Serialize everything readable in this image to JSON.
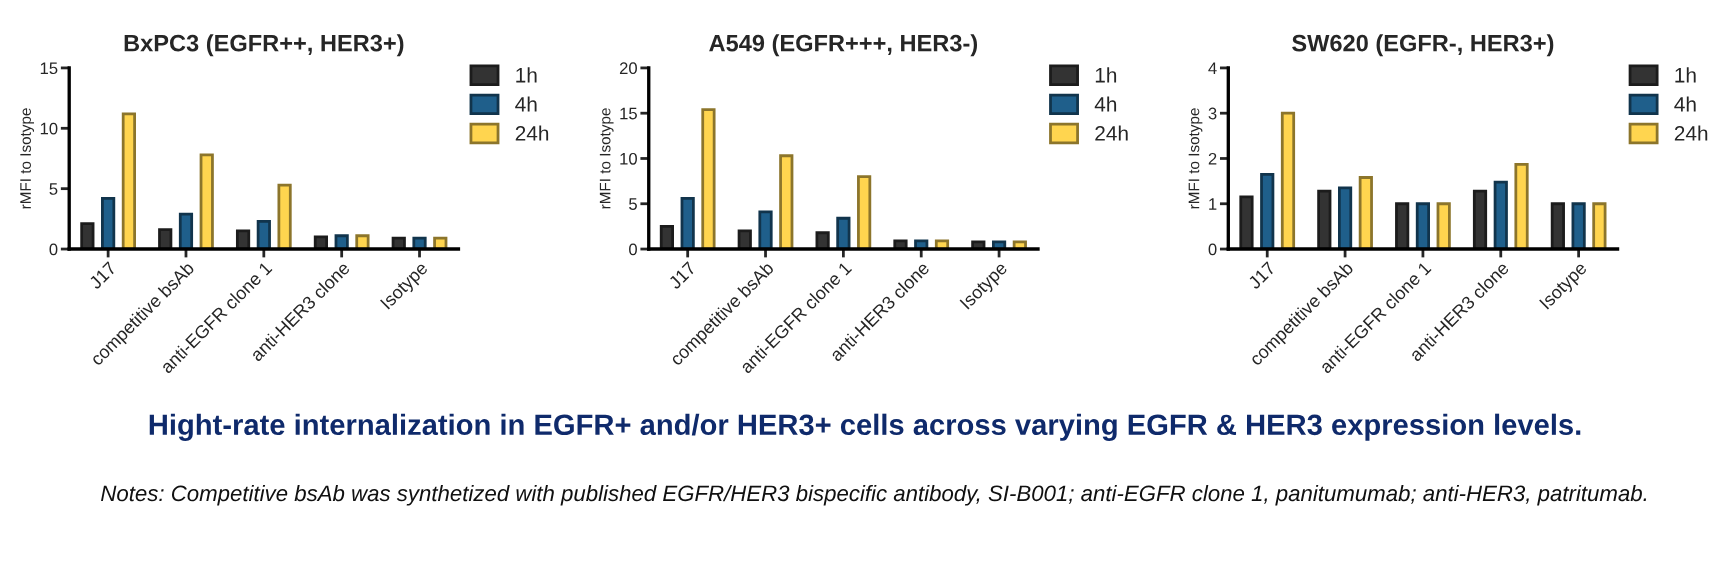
{
  "chart_data": [
    {
      "type": "bar",
      "title": "BxPC3 (EGFR++, HER3+)",
      "ylabel": "rMFI to Isotype",
      "categories": [
        "J17",
        "competitive bsAb",
        "anti-EGFR clone 1",
        "anti-HER3 clone",
        "Isotype"
      ],
      "ylim": [
        0,
        15
      ],
      "yticks": [
        0,
        5,
        10,
        15
      ],
      "legend": "top right",
      "series": [
        {
          "name": "1h",
          "color": "#333333",
          "values": [
            2.1,
            1.6,
            1.5,
            1.0,
            0.9
          ]
        },
        {
          "name": "4h",
          "color": "#1f5f8b",
          "values": [
            4.2,
            2.9,
            2.3,
            1.1,
            0.9
          ]
        },
        {
          "name": "24h",
          "color": "#ffd54f",
          "values": [
            11.2,
            7.8,
            5.3,
            1.1,
            0.9
          ]
        }
      ],
      "annotations": [
        "Hight-rate internalization in EGFR+ and/or HER3+ cells across varying EGFR & HER3 expression levels.",
        "Notes: Competitive bsAb was synthetized with published EGFR/HER3 bispecific antibody, SI-B001; anti-EGFR clone 1, panitumumab; anti-HER3, patritumab."
      ]
    },
    {
      "type": "bar",
      "title": "A549 (EGFR+++, HER3-)",
      "ylabel": "rMFI to Isotype",
      "categories": [
        "J17",
        "competitive bsAb",
        "anti-EGFR clone 1",
        "anti-HER3 clone",
        "Isotype"
      ],
      "ylim": [
        0,
        20
      ],
      "yticks": [
        0,
        5,
        10,
        15,
        20
      ],
      "legend": "top right",
      "series": [
        {
          "name": "1h",
          "color": "#333333",
          "values": [
            2.5,
            2.0,
            1.8,
            0.9,
            0.8
          ]
        },
        {
          "name": "4h",
          "color": "#1f5f8b",
          "values": [
            5.6,
            4.1,
            3.4,
            0.9,
            0.8
          ]
        },
        {
          "name": "24h",
          "color": "#ffd54f",
          "values": [
            15.4,
            10.3,
            8.0,
            0.9,
            0.8
          ]
        }
      ]
    },
    {
      "type": "bar",
      "title": "SW620 (EGFR-, HER3+)",
      "ylabel": "rMFI to Isotype",
      "categories": [
        "J17",
        "competitive bsAb",
        "anti-EGFR clone 1",
        "anti-HER3 clone",
        "Isotype"
      ],
      "ylim": [
        0,
        4
      ],
      "yticks": [
        0,
        1,
        2,
        3,
        4
      ],
      "legend": "top right",
      "series": [
        {
          "name": "1h",
          "color": "#333333",
          "values": [
            1.15,
            1.28,
            1.0,
            1.28,
            1.0
          ]
        },
        {
          "name": "4h",
          "color": "#1f5f8b",
          "values": [
            1.65,
            1.35,
            1.0,
            1.48,
            1.0
          ]
        },
        {
          "name": "24h",
          "color": "#ffd54f",
          "values": [
            3.0,
            1.58,
            1.0,
            1.87,
            1.0
          ]
        }
      ]
    }
  ]
}
